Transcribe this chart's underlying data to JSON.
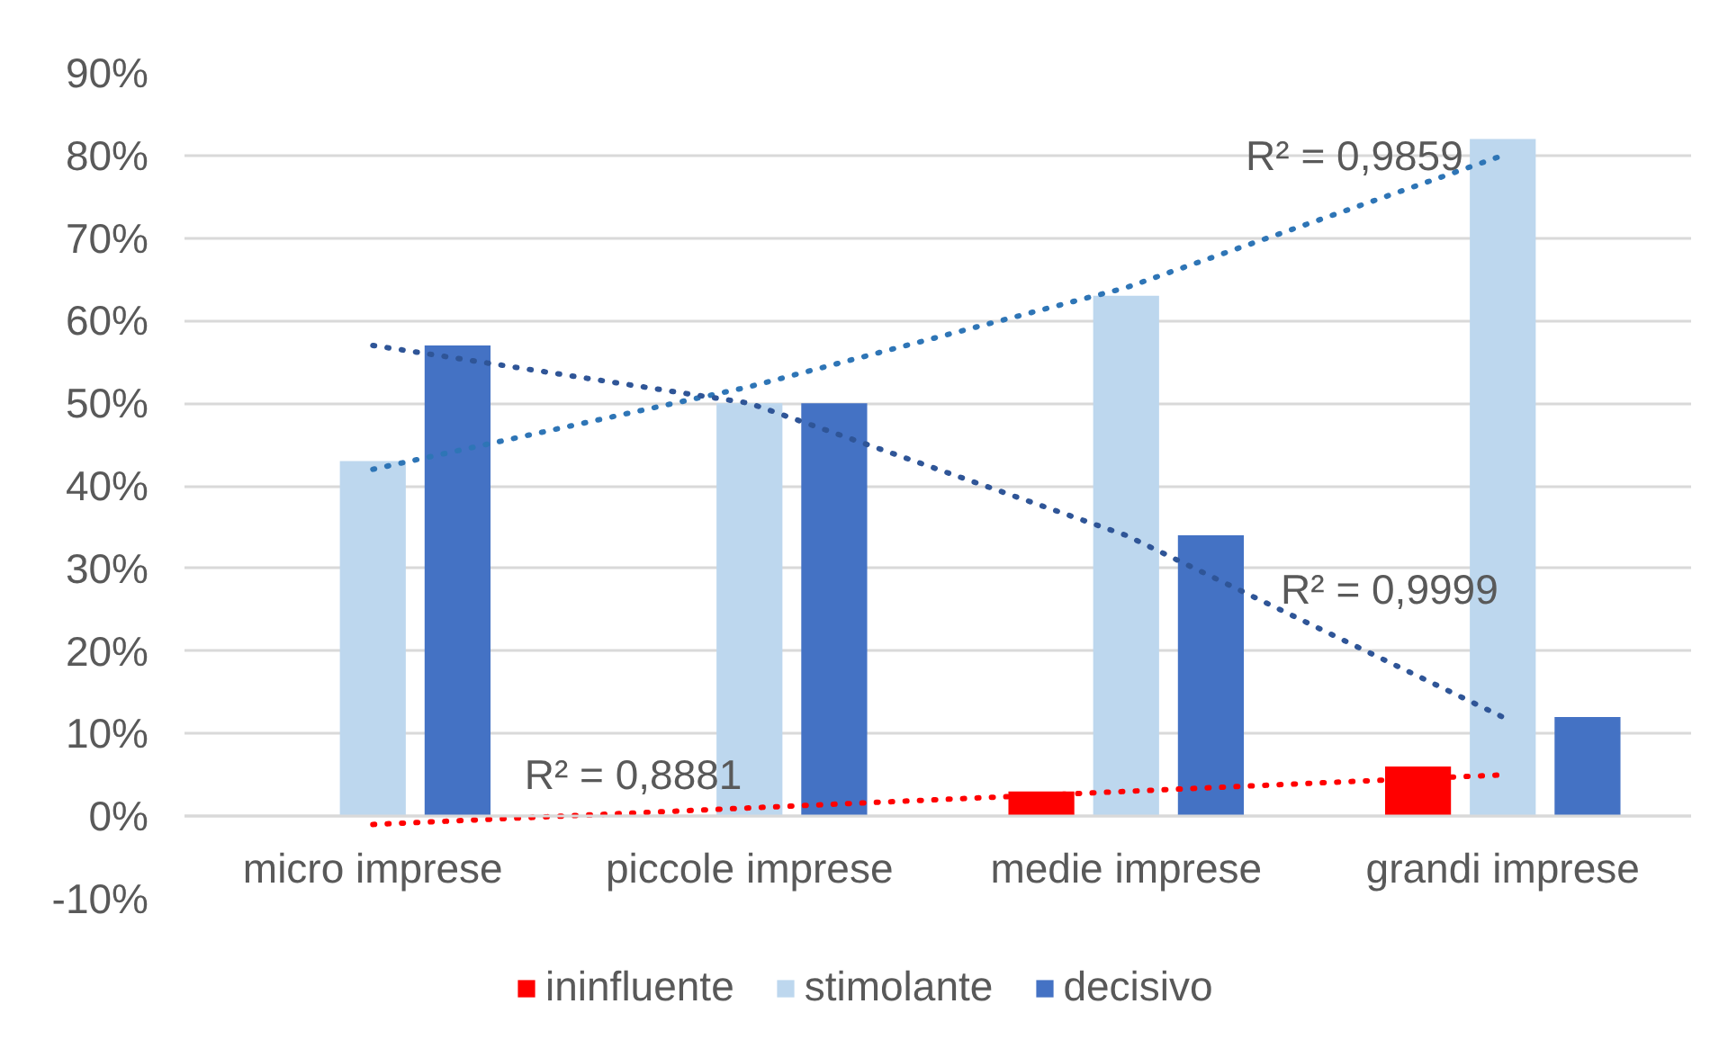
{
  "chart_data": {
    "type": "bar",
    "categories": [
      "micro imprese",
      "piccole imprese",
      "medie imprese",
      "grandi imprese"
    ],
    "ylim": [
      -10,
      90
    ],
    "yticks": [
      {
        "value": -10,
        "label": "-10%"
      },
      {
        "value": 0,
        "label": "0%"
      },
      {
        "value": 10,
        "label": "10%"
      },
      {
        "value": 20,
        "label": "20%"
      },
      {
        "value": 30,
        "label": "30%"
      },
      {
        "value": 40,
        "label": "40%"
      },
      {
        "value": 50,
        "label": "50%"
      },
      {
        "value": 60,
        "label": "60%"
      },
      {
        "value": 70,
        "label": "70%"
      },
      {
        "value": 80,
        "label": "80%"
      },
      {
        "value": 90,
        "label": "90%"
      }
    ],
    "grid": "y",
    "legend": "bottom",
    "series": [
      {
        "name": "ininfluente",
        "color": "#ff0000",
        "values": [
          0,
          0,
          3,
          6
        ]
      },
      {
        "name": "stimolante",
        "color": "#bdd7ee",
        "values": [
          43,
          50,
          63,
          82
        ]
      },
      {
        "name": "decisivo",
        "color": "#4472c4",
        "values": [
          57,
          50,
          34,
          12
        ]
      },
      {
        "type": "line",
        "color": "#ff0000",
        "line_style": "dotted",
        "x": [
          "micro imprese",
          "piccole imprese",
          "medie imprese",
          "grandi imprese"
        ],
        "values": [
          -1,
          1,
          3,
          5
        ]
      },
      {
        "type": "line",
        "color": "#2e75b6",
        "line_style": "dotted",
        "x": [
          "micro imprese",
          "piccole imprese",
          "medie imprese",
          "grandi imprese"
        ],
        "values": [
          42,
          52,
          64,
          80
        ]
      },
      {
        "type": "line",
        "color": "#2f5597",
        "line_style": "dotted",
        "x": [
          "micro imprese",
          "piccole imprese",
          "medie imprese",
          "grandi imprese"
        ],
        "values": [
          57,
          50,
          34,
          12
        ]
      }
    ],
    "annotations": [
      "R² = 0,8881",
      {
        "text": "R² = 0,9859",
        "x": "grandi imprese",
        "y": 80
      },
      "R² = 0,9999"
    ]
  }
}
